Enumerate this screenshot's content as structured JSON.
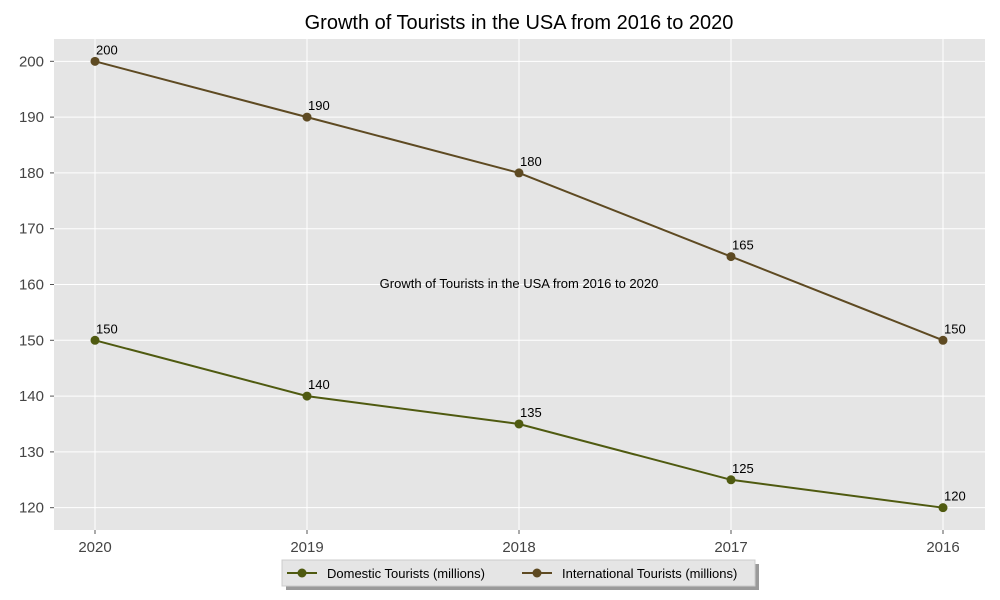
{
  "chart_data": {
    "type": "line",
    "title": "Growth of Tourists in the USA from 2016 to 2020",
    "annotation": "Growth of Tourists in the USA from 2016 to 2020",
    "xlabel": "",
    "ylabel": "",
    "categories": [
      "2020",
      "2019",
      "2018",
      "2017",
      "2016"
    ],
    "series": [
      {
        "name": "Domestic Tourists (millions)",
        "values": [
          150,
          140,
          135,
          125,
          120
        ],
        "color": "#4f5a10"
      },
      {
        "name": "International Tourists (millions)",
        "values": [
          200,
          190,
          180,
          165,
          150
        ],
        "color": "#5e4a22"
      }
    ],
    "ylim": [
      116,
      204
    ],
    "yticks": [
      120,
      130,
      140,
      150,
      160,
      170,
      180,
      190,
      200
    ],
    "grid": true,
    "legend_position": "bottom-center",
    "background": "#e5e5e5",
    "gridline_color": "#ffffff"
  }
}
